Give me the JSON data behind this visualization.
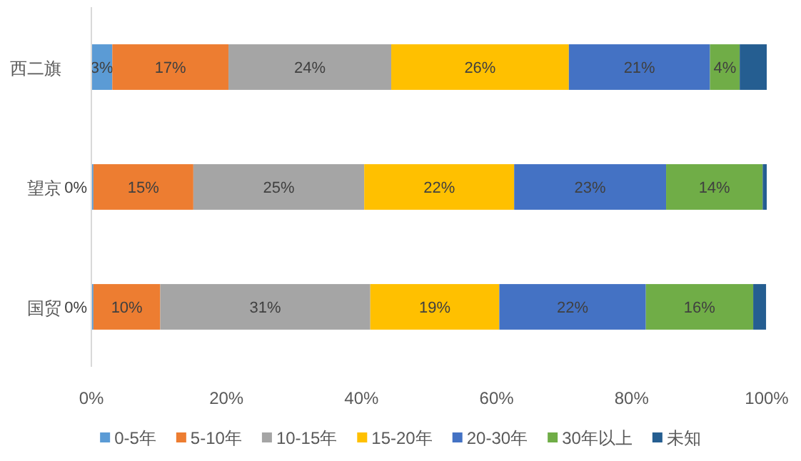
{
  "chart_data": {
    "type": "bar",
    "orientation": "horizontal",
    "stacked": true,
    "legend": "bottom",
    "grid": false,
    "categories": [
      "西二旗",
      "望京",
      "国贸"
    ],
    "xlim": [
      0,
      100
    ],
    "xticks": [
      {
        "value": 0,
        "label": "0%"
      },
      {
        "value": 20,
        "label": "20%"
      },
      {
        "value": 40,
        "label": "40%"
      },
      {
        "value": 60,
        "label": "60%"
      },
      {
        "value": 80,
        "label": "80%"
      },
      {
        "value": 100,
        "label": "100%"
      }
    ],
    "series": [
      {
        "name": "0-5年",
        "color": "#5b9bd5",
        "values": [
          3.1,
          0.3,
          0.3
        ],
        "value_labels": [
          "3%",
          "0%",
          "0%"
        ]
      },
      {
        "name": "5-10年",
        "color": "#ed7d31",
        "values": [
          17.2,
          14.8,
          9.9
        ],
        "value_labels": [
          "17%",
          "15%",
          "10%"
        ]
      },
      {
        "name": "10-15年",
        "color": "#a5a5a5",
        "values": [
          24.1,
          25.3,
          31.1
        ],
        "value_labels": [
          "24%",
          "25%",
          "31%"
        ]
      },
      {
        "name": "15-20年",
        "color": "#ffc000",
        "values": [
          26.3,
          22.2,
          19.1
        ],
        "value_labels": [
          "26%",
          "22%",
          "19%"
        ]
      },
      {
        "name": "20-30年",
        "color": "#4472c4",
        "values": [
          20.9,
          22.5,
          21.7
        ],
        "value_labels": [
          "21%",
          "23%",
          "22%"
        ]
      },
      {
        "name": "30年以上",
        "color": "#70ad47",
        "values": [
          4.4,
          14.3,
          15.9
        ],
        "value_labels": [
          "4%",
          "14%",
          "16%"
        ]
      },
      {
        "name": "未知",
        "color": "#255e91",
        "values": [
          4.0,
          0.6,
          1.9
        ],
        "value_labels": [
          null,
          null,
          null
        ]
      }
    ]
  }
}
